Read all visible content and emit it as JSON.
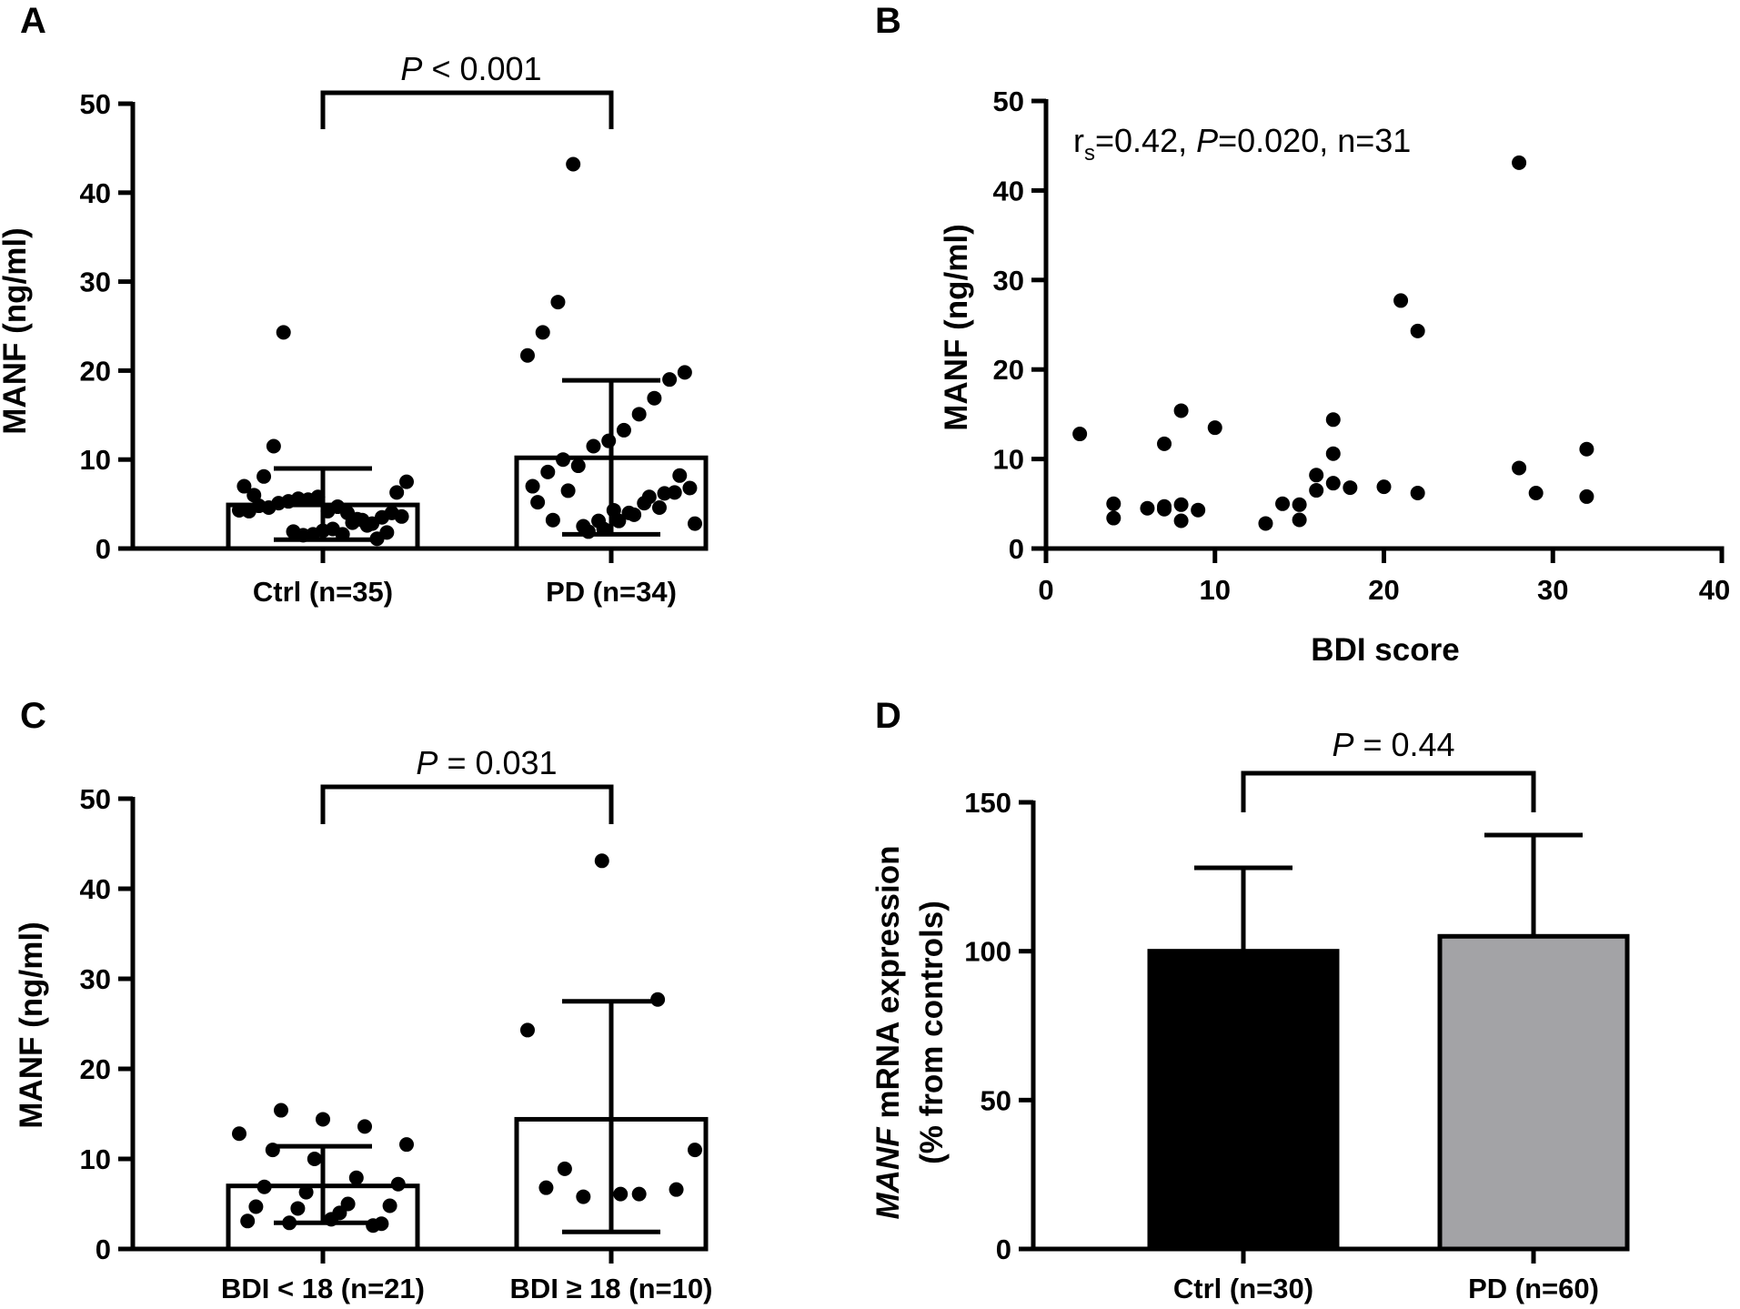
{
  "chart_data": [
    {
      "panel": "A",
      "type": "bar",
      "ylabel": "MANF (ng/ml)",
      "ylim": [
        0,
        50
      ],
      "yticks": [
        0,
        10,
        20,
        30,
        40,
        50
      ],
      "categories": [
        "Ctrl (n=35)",
        "PD (n=34)"
      ],
      "values": [
        4.9,
        10.2
      ],
      "error_upper": [
        9.0,
        18.9
      ],
      "error_lower": [
        1.0,
        1.6
      ],
      "bar_colors": [
        "#ffffff",
        "#ffffff"
      ],
      "stat_p_label": "P",
      "stat_rest": " < 0.001",
      "points": [
        [
          1.9,
          1.5,
          1.6,
          2.0,
          2.2,
          1.6,
          2.9,
          3.2,
          2.8,
          3.5,
          4.0,
          3.6,
          4.3,
          4.2,
          4.8,
          4.6,
          5.1,
          5.3,
          5.6,
          5.5,
          5.8,
          4.2,
          4.7,
          4.0,
          3.3,
          2.6,
          1.1,
          1.8,
          6.3,
          7.5,
          7.0,
          6.0,
          8.1,
          11.5,
          24.3
        ],
        [
          2.5,
          3.1,
          4.3,
          4.0,
          5.1,
          4.6,
          6.3,
          6.8,
          7.0,
          8.6,
          10.0,
          9.3,
          11.5,
          12.1,
          13.3,
          15.1,
          16.9,
          19.0,
          19.8,
          21.7,
          24.3,
          27.7,
          43.2,
          1.9,
          2.2,
          3.1,
          3.8,
          5.8,
          6.2,
          8.2,
          2.8,
          5.2,
          3.2,
          6.5
        ]
      ]
    },
    {
      "panel": "B",
      "type": "scatter",
      "xlabel": "BDI score",
      "ylabel": "MANF (ng/ml)",
      "xlim": [
        0,
        40
      ],
      "ylim": [
        0,
        50
      ],
      "xticks": [
        0,
        10,
        20,
        30,
        40
      ],
      "yticks": [
        0,
        10,
        20,
        30,
        40,
        50
      ],
      "annotation": {
        "r": "r",
        "sub": "s",
        "a": "=0.42, ",
        "p": "P",
        "b": "=0.020, n=31"
      },
      "x": [
        2,
        4,
        4,
        6,
        7,
        7,
        8,
        8,
        8,
        9,
        10,
        13,
        14,
        15,
        15,
        16,
        16,
        17,
        17,
        17,
        18,
        20,
        21,
        22,
        22,
        28,
        28,
        29,
        32,
        32,
        7
      ],
      "y": [
        12.8,
        5.0,
        3.4,
        4.5,
        4.7,
        11.7,
        15.4,
        4.9,
        3.1,
        4.3,
        13.5,
        2.8,
        5.0,
        4.9,
        3.2,
        6.5,
        8.2,
        14.4,
        10.6,
        7.3,
        6.8,
        6.9,
        27.7,
        24.3,
        6.2,
        9.0,
        43.1,
        6.2,
        11.1,
        5.8,
        4.4
      ]
    },
    {
      "panel": "C",
      "type": "bar",
      "ylabel": "MANF (ng/ml)",
      "ylim": [
        0,
        50
      ],
      "yticks": [
        0,
        10,
        20,
        30,
        40,
        50
      ],
      "categories": [
        "BDI < 18 (n=21)",
        "BDI ≥ 18 (n=10)"
      ],
      "values": [
        7.0,
        14.4
      ],
      "error_upper": [
        11.4,
        27.5
      ],
      "error_lower": [
        2.9,
        1.9
      ],
      "bar_colors": [
        "#ffffff",
        "#ffffff"
      ],
      "stat_p_label": "P",
      "stat_rest": " = 0.031",
      "points": [
        [
          3.3,
          2.9,
          3.1,
          2.8,
          4.0,
          4.5,
          4.7,
          4.8,
          5.0,
          6.3,
          6.9,
          7.2,
          7.9,
          10.0,
          11.0,
          11.6,
          13.6,
          14.4,
          15.4,
          12.8,
          2.6
        ],
        [
          6.8,
          6.6,
          6.1,
          8.9,
          11.0,
          6.1,
          5.8,
          24.3,
          27.7,
          43.1
        ]
      ]
    },
    {
      "panel": "D",
      "type": "bar",
      "ylabel_italic": "MANF",
      "ylabel_rest": " mRNA expression",
      "ylabel2": "(% from controls)",
      "ylim": [
        0,
        150
      ],
      "yticks": [
        0,
        50,
        100,
        150
      ],
      "categories": [
        "Ctrl (n=30)",
        "PD (n=60)"
      ],
      "values": [
        100,
        105
      ],
      "error_upper": [
        128,
        139
      ],
      "bar_colors": [
        "#000000",
        "#a3a3a6"
      ],
      "stat_p_label": "P",
      "stat_rest": " = 0.44"
    }
  ]
}
